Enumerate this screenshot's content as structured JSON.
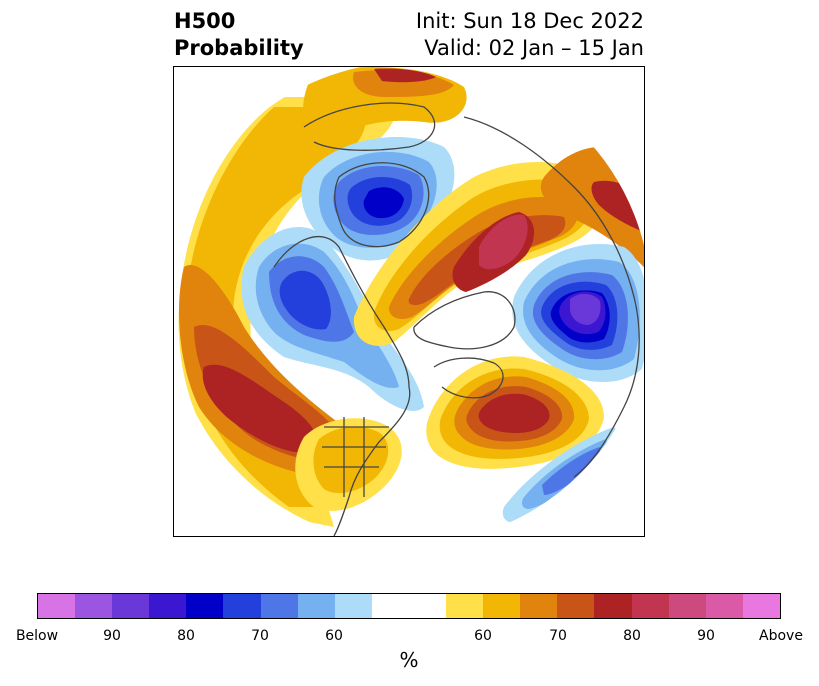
{
  "title": {
    "left_line1": "H500",
    "left_line2": "Probability",
    "right_line1": "Init: Sun 18 Dec 2022",
    "right_line2": "Valid: 02 Jan – 15 Jan"
  },
  "colorbar": {
    "colors": [
      "#d773e5",
      "#9b55e0",
      "#6a38d8",
      "#3b17d2",
      "#0000c8",
      "#2440dc",
      "#4f76e6",
      "#75b0f0",
      "#acdcf8",
      "#ffffff",
      "#ffe048",
      "#f2b705",
      "#e0840d",
      "#c85418",
      "#ad2222",
      "#c23550",
      "#cc4a7e",
      "#da5aa8",
      "#e878e0"
    ],
    "tick_labels": [
      "Below",
      "90",
      "80",
      "70",
      "60",
      "60",
      "70",
      "80",
      "90",
      "Above"
    ],
    "unit_label": "%"
  },
  "map": {
    "colors": {
      "below_60": "#acdcf8",
      "below_65": "#75b0f0",
      "below_70": "#4f76e6",
      "below_75": "#2440dc",
      "below_80": "#0000c8",
      "below_85": "#3b17d2",
      "below_90": "#6a38d8",
      "above_60": "#ffe048",
      "above_65": "#f2b705",
      "above_70": "#e0840d",
      "above_75": "#c85418",
      "above_80": "#ad2222",
      "above_85": "#c23550",
      "coastline": "#444444"
    }
  }
}
